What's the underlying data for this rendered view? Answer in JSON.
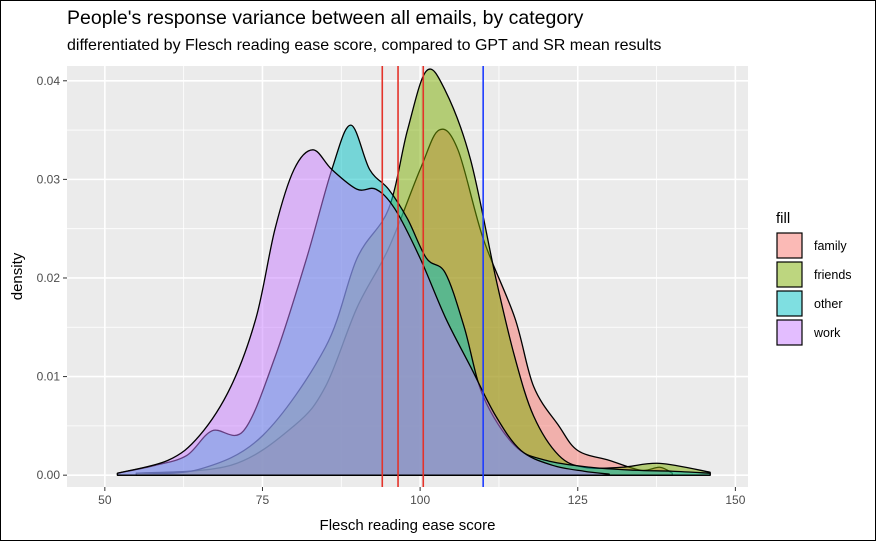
{
  "chart_data": {
    "type": "area",
    "title": "People's response variance between all emails, by category",
    "subtitle": "differentiated by Flesch reading ease score, compared to GPT and SR mean results",
    "xlabel": "Flesch reading ease score",
    "ylabel": "density",
    "xlim": [
      44,
      152
    ],
    "ylim": [
      -0.0012,
      0.0415
    ],
    "x_ticks": [
      50,
      75,
      100,
      125,
      150
    ],
    "y_ticks": [
      0.0,
      0.01,
      0.02,
      0.03,
      0.04
    ],
    "x_tick_labels": [
      "50",
      "75",
      "100",
      "125",
      "150"
    ],
    "y_tick_labels": [
      "0.00",
      "0.01",
      "0.02",
      "0.03",
      "0.04"
    ],
    "grid": true,
    "legend": {
      "title": "fill",
      "placement": "right"
    },
    "series": [
      {
        "name": "family",
        "color": "#F8766D",
        "points": [
          [
            55,
            0.0002
          ],
          [
            70,
            0.001
          ],
          [
            80,
            0.005
          ],
          [
            85,
            0.009
          ],
          [
            90,
            0.017
          ],
          [
            95,
            0.023
          ],
          [
            100,
            0.031
          ],
          [
            103,
            0.035
          ],
          [
            106,
            0.033
          ],
          [
            110,
            0.024
          ],
          [
            115,
            0.016
          ],
          [
            118,
            0.009
          ],
          [
            122,
            0.005
          ],
          [
            125,
            0.0025
          ],
          [
            130,
            0.0015
          ],
          [
            135,
            0.0005
          ],
          [
            138,
            0.0008
          ],
          [
            140,
            0.0002
          ]
        ]
      },
      {
        "name": "friends",
        "color": "#7CAE00",
        "points": [
          [
            55,
            0.0002
          ],
          [
            65,
            0.0006
          ],
          [
            75,
            0.004
          ],
          [
            85,
            0.013
          ],
          [
            90,
            0.022
          ],
          [
            95,
            0.027
          ],
          [
            98,
            0.035
          ],
          [
            101,
            0.041
          ],
          [
            104,
            0.039
          ],
          [
            108,
            0.032
          ],
          [
            112,
            0.02
          ],
          [
            115,
            0.012
          ],
          [
            118,
            0.006
          ],
          [
            122,
            0.002
          ],
          [
            126,
            0.0008
          ],
          [
            132,
            0.0008
          ],
          [
            138,
            0.0012
          ],
          [
            146,
            0.0003
          ]
        ]
      },
      {
        "name": "other",
        "color": "#00BFC4",
        "points": [
          [
            52,
            0.0002
          ],
          [
            58,
            0.001
          ],
          [
            63,
            0.002
          ],
          [
            67,
            0.0045
          ],
          [
            72,
            0.0045
          ],
          [
            77,
            0.012
          ],
          [
            82,
            0.022
          ],
          [
            86,
            0.031
          ],
          [
            89,
            0.0355
          ],
          [
            92,
            0.031
          ],
          [
            95,
            0.029
          ],
          [
            98,
            0.026
          ],
          [
            101,
            0.022
          ],
          [
            104,
            0.0205
          ],
          [
            107,
            0.015
          ],
          [
            110,
            0.008
          ],
          [
            115,
            0.003
          ],
          [
            120,
            0.0015
          ],
          [
            127,
            0.0008
          ],
          [
            134,
            0.0005
          ],
          [
            140,
            0.0004
          ],
          [
            146,
            0.0002
          ]
        ]
      },
      {
        "name": "work",
        "color": "#C77CFF",
        "points": [
          [
            52,
            0.0002
          ],
          [
            60,
            0.0015
          ],
          [
            65,
            0.004
          ],
          [
            70,
            0.009
          ],
          [
            74,
            0.016
          ],
          [
            77,
            0.025
          ],
          [
            80,
            0.031
          ],
          [
            83,
            0.033
          ],
          [
            86,
            0.031
          ],
          [
            90,
            0.029
          ],
          [
            93,
            0.029
          ],
          [
            96,
            0.027
          ],
          [
            100,
            0.022
          ],
          [
            104,
            0.016
          ],
          [
            108,
            0.011
          ],
          [
            112,
            0.006
          ],
          [
            116,
            0.0025
          ],
          [
            121,
            0.001
          ],
          [
            126,
            0.0004
          ],
          [
            130,
            0.0001
          ]
        ]
      }
    ],
    "vlines": [
      {
        "x": 94,
        "color": "#E4332A"
      },
      {
        "x": 96.5,
        "color": "#E4332A"
      },
      {
        "x": 100.5,
        "color": "#E4332A"
      },
      {
        "x": 110,
        "color": "#1E3CFF"
      }
    ]
  }
}
